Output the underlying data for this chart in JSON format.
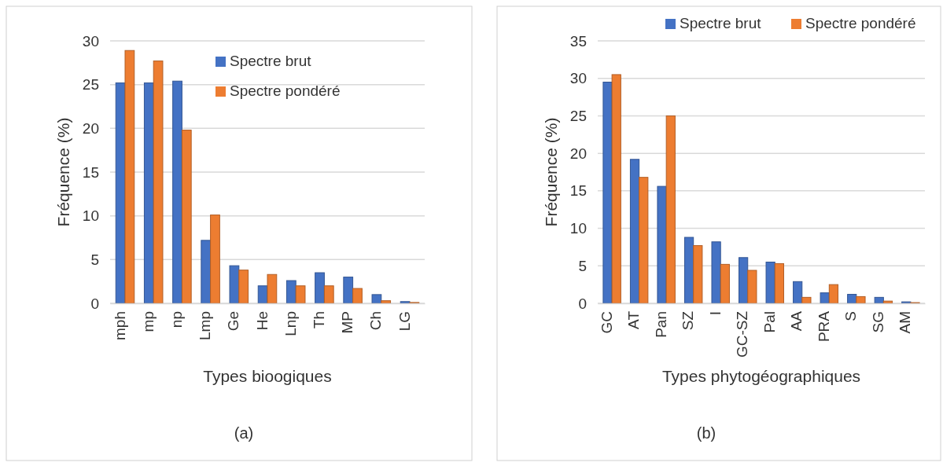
{
  "chart_data": [
    {
      "type": "bar",
      "xlabel": "Types bioogiques",
      "ylabel": "Fréquence (%)",
      "annotations": [
        "(a)"
      ],
      "categories": [
        "mph",
        "mp",
        "np",
        "Lmp",
        "Ge",
        "He",
        "Lnp",
        "Th",
        "MP",
        "Ch",
        "LG"
      ],
      "series": [
        {
          "name": "Spectre brut",
          "color": "#4472c4",
          "values": [
            25.2,
            25.2,
            25.4,
            7.2,
            4.3,
            2.0,
            2.6,
            3.5,
            3.0,
            1.0,
            0.2
          ]
        },
        {
          "name": "Spectre pondéré",
          "color": "#ed7d31",
          "values": [
            28.9,
            27.7,
            19.8,
            10.1,
            3.8,
            3.3,
            2.0,
            2.0,
            1.7,
            0.3,
            0.1
          ]
        }
      ],
      "ylim": [
        0,
        30
      ],
      "yticks": [
        0,
        5,
        10,
        15,
        20,
        25,
        30
      ],
      "grid": "y",
      "legend": "top right"
    },
    {
      "type": "bar",
      "xlabel": "Types phytogéographiques",
      "ylabel": "Fréquence (%)",
      "annotations": [
        "(b)"
      ],
      "categories": [
        "GC",
        "AT",
        "Pan",
        "SZ",
        "I",
        "GC-SZ",
        "Pal",
        "AA",
        "PRA",
        "S",
        "SG",
        "AM"
      ],
      "series": [
        {
          "name": "Spectre brut",
          "color": "#4472c4",
          "values": [
            29.5,
            19.2,
            15.6,
            8.8,
            8.2,
            6.1,
            5.5,
            2.9,
            1.4,
            1.2,
            0.8,
            0.2
          ]
        },
        {
          "name": "Spectre pondéré",
          "color": "#ed7d31",
          "values": [
            30.5,
            16.8,
            25.0,
            7.7,
            5.2,
            4.4,
            5.3,
            0.8,
            2.5,
            0.9,
            0.3,
            0.1
          ]
        }
      ],
      "ylim": [
        0,
        35
      ],
      "yticks": [
        0,
        5,
        10,
        15,
        20,
        25,
        30,
        35
      ],
      "grid": "y",
      "legend": "top right"
    }
  ]
}
